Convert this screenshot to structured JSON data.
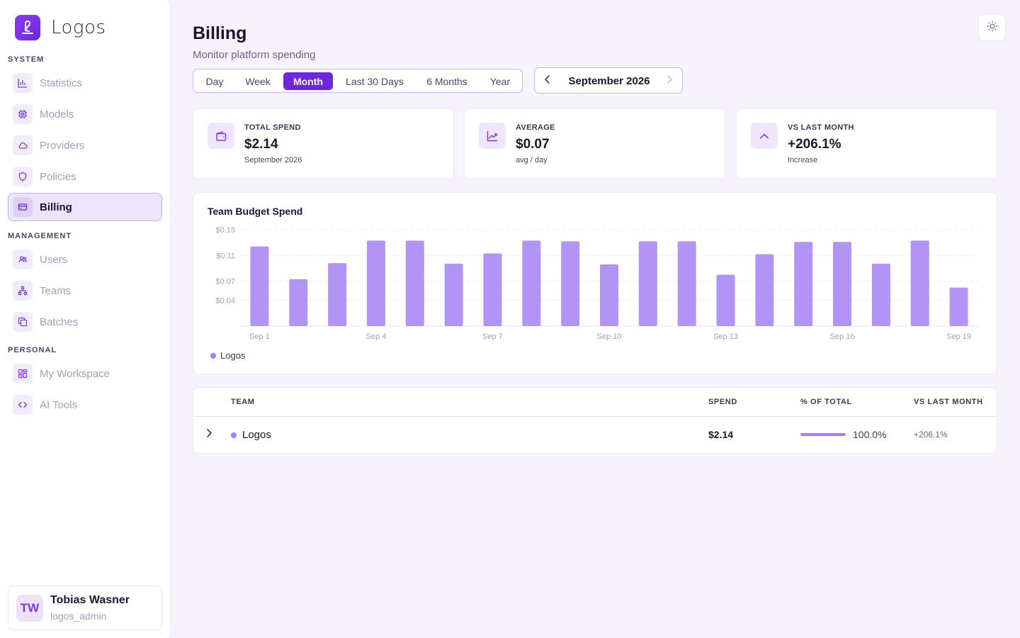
{
  "app": {
    "name": "Logos"
  },
  "sidebar": {
    "sections": [
      {
        "label": "SYSTEM",
        "items": [
          {
            "label": "Statistics",
            "icon": "bar-chart-icon"
          },
          {
            "label": "Models",
            "icon": "chip-icon"
          },
          {
            "label": "Providers",
            "icon": "cloud-icon"
          },
          {
            "label": "Policies",
            "icon": "shield-icon"
          },
          {
            "label": "Billing",
            "icon": "credit-card-icon",
            "active": true
          }
        ]
      },
      {
        "label": "MANAGEMENT",
        "items": [
          {
            "label": "Users",
            "icon": "users-icon"
          },
          {
            "label": "Teams",
            "icon": "org-chart-icon"
          },
          {
            "label": "Batches",
            "icon": "copy-icon"
          }
        ]
      },
      {
        "label": "PERSONAL",
        "items": [
          {
            "label": "My Workspace",
            "icon": "grid-icon"
          },
          {
            "label": "AI Tools",
            "icon": "code-icon"
          }
        ]
      }
    ],
    "user": {
      "initials": "TW",
      "name": "Tobias Wasner",
      "handle": "logos_admin"
    }
  },
  "header": {
    "title": "Billing",
    "subtitle": "Monitor platform spending"
  },
  "range": {
    "options": [
      "Day",
      "Week",
      "Month",
      "Last 30 Days",
      "6 Months",
      "Year"
    ],
    "selected": "Month"
  },
  "period": {
    "label": "September 2026"
  },
  "stats": [
    {
      "label": "TOTAL SPEND",
      "value": "$2.14",
      "note": "September 2026",
      "icon": "wallet-icon"
    },
    {
      "label": "AVERAGE",
      "value": "$0.07",
      "note": "avg / day",
      "icon": "trend-up-icon"
    },
    {
      "label": "VS LAST MONTH",
      "value": "+206.1%",
      "note": "Increase",
      "icon": "chevron-up-icon"
    }
  ],
  "chart_data": {
    "type": "bar",
    "title": "Team Budget Spend",
    "categories": [
      "Sep 1",
      "Sep 2",
      "Sep 3",
      "Sep 4",
      "Sep 5",
      "Sep 6",
      "Sep 7",
      "Sep 8",
      "Sep 9",
      "Sep 10",
      "Sep 11",
      "Sep 12",
      "Sep 13",
      "Sep 14",
      "Sep 15",
      "Sep 16",
      "Sep 17",
      "Sep 18",
      "Sep 19"
    ],
    "x_tick_labels": [
      "Sep 1",
      "Sep 4",
      "Sep 7",
      "Sep 10",
      "Sep 13",
      "Sep 16",
      "Sep 19"
    ],
    "series": [
      {
        "name": "Logos",
        "color": "#b294f6",
        "values": [
          0.124,
          0.073,
          0.098,
          0.133,
          0.133,
          0.097,
          0.113,
          0.133,
          0.132,
          0.096,
          0.132,
          0.132,
          0.08,
          0.112,
          0.131,
          0.131,
          0.097,
          0.133,
          0.06
        ]
      }
    ],
    "y_tick_labels": [
      "$0.15",
      "$0.11",
      "$0.07",
      "$0.04"
    ],
    "y_ticks": [
      0.15,
      0.11,
      0.07,
      0.04
    ],
    "ylim": [
      0,
      0.15
    ],
    "grid": true,
    "legend_position": "bottom-left"
  },
  "table": {
    "headers": {
      "team": "TEAM",
      "spend": "SPEND",
      "pct": "% OF TOTAL",
      "vs": "VS LAST MONTH"
    },
    "rows": [
      {
        "team": "Logos",
        "spend": "$2.14",
        "pct_label": "100.0%",
        "pct": 1.0,
        "vs": "+206.1%"
      }
    ]
  },
  "colors": {
    "accent": "#6d28d9",
    "bar": "#b294f6",
    "background": "#f6f3fc"
  }
}
